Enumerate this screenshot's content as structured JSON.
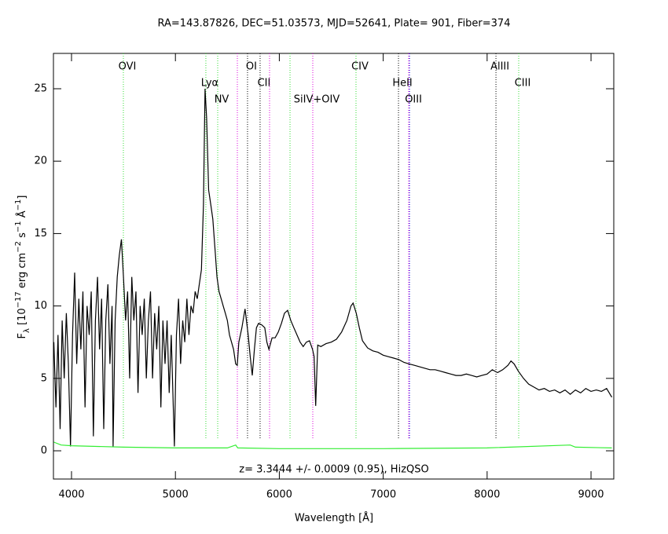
{
  "chart_data": {
    "type": "line",
    "title": "RA=143.87826, DEC=51.03573, MJD=52641, Plate=  901, Fiber=374",
    "xlabel": "Wavelength [Å]",
    "ylabel": [
      "F",
      "λ",
      " [10",
      "−17",
      " erg cm",
      "−2",
      " s",
      "−1",
      " Å",
      "−1",
      "]"
    ],
    "annotation": "z= 3.3444 +/- 0.0009 (0.95), HizQSO",
    "xlim": [
      3826,
      9219
    ],
    "ylim": [
      -1.95,
      27.44
    ],
    "xticks": [
      4000,
      5000,
      6000,
      7000,
      8000,
      9000
    ],
    "yticks": [
      0,
      5,
      10,
      15,
      20,
      25
    ],
    "lines": [
      {
        "label": "OVI",
        "wavelength": 4499,
        "color": "#33dd33"
      },
      {
        "label": "Lyα",
        "wavelength": 5293,
        "color": "#33dd33"
      },
      {
        "label": "NV",
        "wavelength": 5407,
        "color": "#33dd33"
      },
      {
        "label": null,
        "wavelength": 5596,
        "color": "#dd00dd"
      },
      {
        "label": "OI",
        "wavelength": 5694,
        "color": "#000000"
      },
      {
        "label": "CII",
        "wavelength": 5815,
        "color": "#000000"
      },
      {
        "label": null,
        "wavelength": 5906,
        "color": "#dd00dd"
      },
      {
        "label": null,
        "wavelength": 6103,
        "color": "#33dd33"
      },
      {
        "label": "SiIV+OIV",
        "wavelength": 6322,
        "color": "#dd00dd"
      },
      {
        "label": "CIV",
        "wavelength": 6738,
        "color": "#33dd33"
      },
      {
        "label": "HeII",
        "wavelength": 7147,
        "color": "#000000"
      },
      {
        "label": null,
        "wavelength": 7245,
        "color": "#dd00dd"
      },
      {
        "label": "OIII",
        "wavelength": 7253,
        "color": "#0000dd"
      },
      {
        "label": "AlIII",
        "wavelength": 8085,
        "color": "#000000"
      },
      {
        "label": "CIII",
        "wavelength": 8304,
        "color": "#33dd33"
      }
    ],
    "series": [
      {
        "color": "#000000",
        "x": [
          3830,
          3850,
          3870,
          3890,
          3910,
          3930,
          3950,
          3970,
          3990,
          4010,
          4030,
          4050,
          4070,
          4090,
          4110,
          4130,
          4150,
          4170,
          4190,
          4210,
          4230,
          4250,
          4270,
          4290,
          4310,
          4330,
          4350,
          4370,
          4390,
          4400,
          4420,
          4440,
          4460,
          4480,
          4500,
          4520,
          4540,
          4560,
          4580,
          4600,
          4620,
          4640,
          4660,
          4680,
          4700,
          4720,
          4740,
          4760,
          4780,
          4800,
          4820,
          4840,
          4860,
          4880,
          4900,
          4920,
          4940,
          4960,
          4990,
          5010,
          5030,
          5050,
          5070,
          5090,
          5110,
          5130,
          5150,
          5170,
          5190,
          5210,
          5230,
          5250,
          5270,
          5285,
          5300,
          5320,
          5340,
          5360,
          5380,
          5400,
          5420,
          5440,
          5460,
          5480,
          5500,
          5520,
          5540,
          5560,
          5580,
          5595,
          5610,
          5640,
          5670,
          5700,
          5720,
          5740,
          5760,
          5780,
          5800,
          5830,
          5860,
          5880,
          5900,
          5930,
          5960,
          5990,
          6020,
          6050,
          6080,
          6110,
          6140,
          6170,
          6200,
          6230,
          6260,
          6290,
          6320,
          6335,
          6350,
          6370,
          6400,
          6450,
          6500,
          6550,
          6600,
          6650,
          6690,
          6710,
          6740,
          6770,
          6800,
          6850,
          6900,
          6950,
          7000,
          7050,
          7100,
          7150,
          7200,
          7250,
          7300,
          7350,
          7400,
          7450,
          7500,
          7550,
          7600,
          7650,
          7700,
          7750,
          7800,
          7850,
          7900,
          7950,
          8000,
          8050,
          8100,
          8150,
          8200,
          8230,
          8260,
          8300,
          8350,
          8400,
          8450,
          8500,
          8550,
          8600,
          8650,
          8700,
          8750,
          8800,
          8850,
          8900,
          8950,
          9000,
          9050,
          9100,
          9150,
          9200
        ],
        "values": [
          7.5,
          3,
          8,
          1.5,
          9,
          5,
          9.5,
          6,
          0.3,
          8,
          12.3,
          6,
          10.5,
          7,
          11,
          3,
          10,
          8,
          11,
          1,
          9,
          12,
          7,
          10.5,
          1.5,
          9,
          11.5,
          6,
          10,
          0.3,
          9,
          12,
          13.5,
          14.6,
          12,
          9,
          11,
          5,
          12,
          9,
          11,
          4,
          10,
          8,
          10.5,
          5,
          9,
          11,
          5,
          9.5,
          7,
          10,
          3,
          9,
          6,
          9,
          4,
          8,
          0.3,
          8,
          10.5,
          6,
          9,
          7.5,
          10.5,
          8,
          10,
          9.5,
          11,
          10.5,
          11.5,
          12.5,
          17,
          25,
          23,
          18,
          17,
          16,
          14,
          12,
          11,
          10.5,
          10,
          9.5,
          9,
          8,
          7.5,
          7,
          6,
          5.9,
          7.5,
          8.5,
          9.8,
          8,
          6.5,
          5.2,
          7,
          8.5,
          8.8,
          8.7,
          8.5,
          7.5,
          7,
          7.8,
          7.8,
          8.2,
          8.8,
          9.5,
          9.7,
          9,
          8.5,
          8,
          7.5,
          7.2,
          7.5,
          7.6,
          7,
          6.5,
          3.1,
          7.3,
          7.2,
          7.4,
          7.5,
          7.7,
          8.2,
          9,
          10,
          10.2,
          9.5,
          8.5,
          7.6,
          7.1,
          6.9,
          6.8,
          6.6,
          6.5,
          6.4,
          6.3,
          6.1,
          6,
          5.9,
          5.8,
          5.7,
          5.6,
          5.6,
          5.5,
          5.4,
          5.3,
          5.2,
          5.2,
          5.3,
          5.2,
          5.1,
          5.2,
          5.3,
          5.6,
          5.4,
          5.6,
          5.9,
          6.2,
          6,
          5.5,
          5,
          4.6,
          4.4,
          4.2,
          4.3,
          4.1,
          4.2,
          4,
          4.2,
          3.9,
          4.2,
          4,
          4.3,
          4.1,
          4.2,
          4.1,
          4.3,
          3.7
        ]
      },
      {
        "color": "#33ee33",
        "x": [
          3830,
          3900,
          4000,
          4500,
          5000,
          5500,
          5580,
          5600,
          6000,
          7000,
          8000,
          8800,
          8850,
          9200
        ],
        "values": [
          0.6,
          0.4,
          0.35,
          0.25,
          0.2,
          0.2,
          0.4,
          0.2,
          0.15,
          0.15,
          0.2,
          0.4,
          0.25,
          0.2
        ]
      }
    ]
  }
}
